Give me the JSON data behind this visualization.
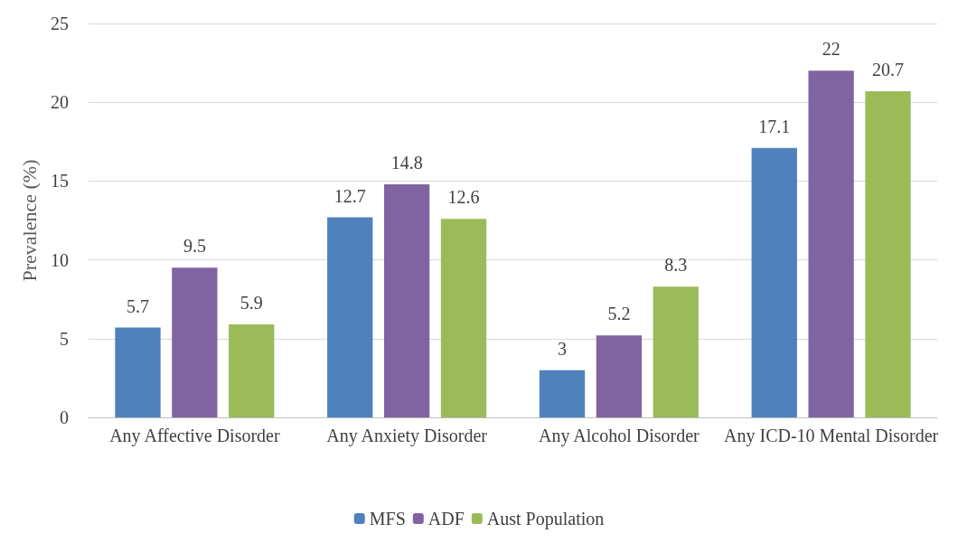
{
  "chart_data": {
    "type": "bar",
    "ylabel": "Prevalence (%)",
    "categories": [
      "Any Affective Disorder",
      "Any Anxiety Disorder",
      "Any Alcohol Disorder",
      "Any ICD-10 Mental Disorder"
    ],
    "series": [
      {
        "name": "MFS",
        "color": "#4f81bd",
        "values": [
          5.7,
          12.7,
          3,
          17.1
        ]
      },
      {
        "name": "ADF",
        "color": "#8064a2",
        "values": [
          9.5,
          14.8,
          5.2,
          22
        ]
      },
      {
        "name": "Aust Population",
        "color": "#9bbb59",
        "values": [
          5.9,
          12.6,
          8.3,
          20.7
        ]
      }
    ],
    "ylim": [
      0,
      25
    ],
    "yticks": [
      0,
      5,
      10,
      15,
      20,
      25
    ],
    "grid": "y",
    "legend": "bottom",
    "data_labels": true
  }
}
